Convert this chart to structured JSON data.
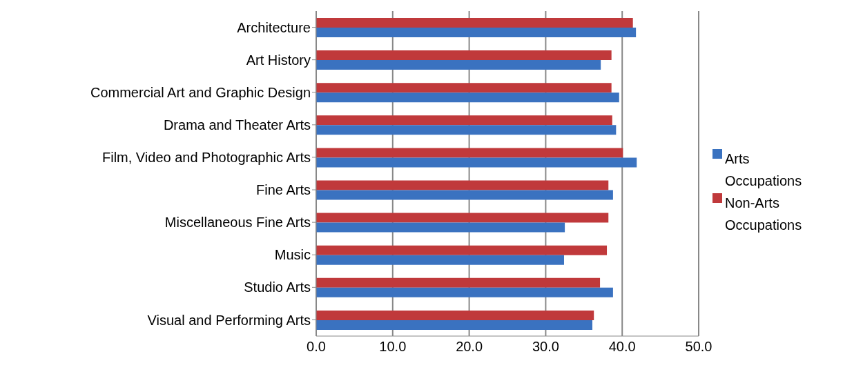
{
  "chart_data": {
    "type": "bar",
    "orientation": "horizontal",
    "categories": [
      "Architecture",
      "Art History",
      "Commercial Art and Graphic Design",
      "Drama and Theater Arts",
      "Film, Video and Photographic Arts",
      "Fine Arts",
      "Miscellaneous Fine Arts",
      "Music",
      "Studio Arts",
      "Visual and Performing Arts"
    ],
    "series": [
      {
        "name": "Non-Arts Occupations",
        "color": "#c0393b",
        "values": [
          41.4,
          38.6,
          38.6,
          38.7,
          40.1,
          38.2,
          38.2,
          38.0,
          37.1,
          36.3
        ]
      },
      {
        "name": "Arts Occupations",
        "color": "#3a72c0",
        "values": [
          41.8,
          37.2,
          39.6,
          39.2,
          41.9,
          38.8,
          32.5,
          32.4,
          38.8,
          36.1
        ]
      }
    ],
    "xlim": [
      0,
      50
    ],
    "xticks": [
      {
        "value": 0,
        "label": "0.0"
      },
      {
        "value": 10,
        "label": "10.0"
      },
      {
        "value": 20,
        "label": "20.0"
      },
      {
        "value": 30,
        "label": "30.0"
      },
      {
        "value": 40,
        "label": "40.0"
      },
      {
        "value": 50,
        "label": "50.0"
      }
    ],
    "grid": "x",
    "legend": "right"
  }
}
